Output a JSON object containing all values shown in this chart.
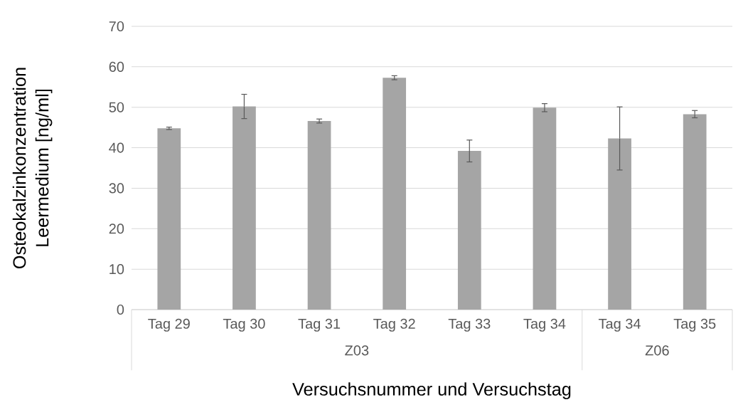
{
  "chart_data": {
    "type": "bar",
    "xlabel": "Versuchsnummer und Versuchstag",
    "ylabel": "Osteokalzinkonzentration Leermedium [ng/ml]",
    "categories": [
      "Tag 29",
      "Tag 30",
      "Tag 31",
      "Tag 32",
      "Tag 33",
      "Tag 34",
      "Tag 34",
      "Tag 35"
    ],
    "values": [
      44.8,
      50.2,
      46.6,
      57.3,
      39.2,
      49.9,
      42.3,
      48.3
    ],
    "errors": [
      0.3,
      3.0,
      0.5,
      0.5,
      2.7,
      1.0,
      7.8,
      0.9
    ],
    "color": "#a5a5a5",
    "ylim": [
      0,
      70
    ],
    "yticks": [
      0,
      10,
      20,
      30,
      40,
      50,
      60,
      70
    ],
    "grid": "y",
    "annotations": [
      "Z03",
      "Z06"
    ]
  }
}
